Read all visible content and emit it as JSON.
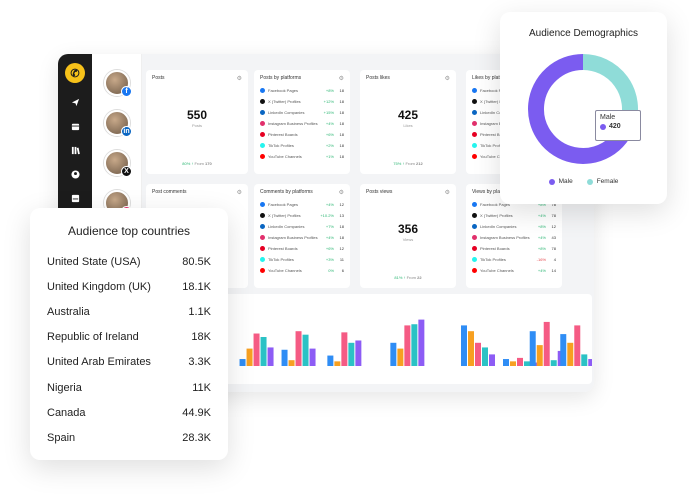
{
  "colors": {
    "facebook": "#1877f2",
    "x": "#111111",
    "linkedin": "#0a66c2",
    "instagram": "#e1306c",
    "pinterest": "#e60023",
    "tiktok": "#25f4ee",
    "youtube": "#ff0000",
    "male": "#7b5cf0",
    "female": "#8fdcd8",
    "bar_blue": "#2f8df5",
    "bar_orange": "#f7a021",
    "bar_pink": "#f55b84",
    "bar_teal": "#2bc2c5",
    "bar_purple": "#8d5cf5",
    "bar_dark": "#222222",
    "bar_yellow": "#ffcf4a"
  },
  "sidebar": {
    "icons": [
      "logo-icon",
      "send-icon",
      "calendar-icon",
      "library-icon",
      "user-icon",
      "inbox-icon"
    ]
  },
  "accounts": [
    {
      "network": "facebook",
      "badge": "f"
    },
    {
      "network": "linkedin",
      "badge": "in"
    },
    {
      "network": "x",
      "badge": "X"
    },
    {
      "network": "instagram",
      "badge": "◎"
    }
  ],
  "cards": {
    "posts": {
      "title": "Posts",
      "value": "550",
      "sub": "Posts",
      "change": "80% ↑",
      "from_label": "From",
      "from_value": "170"
    },
    "likes": {
      "title": "Posts likes",
      "value": "425",
      "sub": "Likes",
      "change": "75% ↑",
      "from_label": "From",
      "from_value": "212"
    },
    "comments": {
      "title": "Post comments"
    },
    "views": {
      "title": "Posts views",
      "value": "356",
      "sub": "Views",
      "change": "81% ↑",
      "from_label": "From",
      "from_value": "22"
    },
    "by_platforms": {
      "title": "Posts by platforms",
      "rows": [
        {
          "name": "Facebook Pages",
          "change": "+8%",
          "value": "18"
        },
        {
          "name": "X (Twitter) Profiles",
          "change": "+12%",
          "value": "18"
        },
        {
          "name": "LinkedIn Companies",
          "change": "+15%",
          "value": "18"
        },
        {
          "name": "Instagram Business Profiles",
          "change": "+4%",
          "value": "18"
        },
        {
          "name": "Pinterest Boards",
          "change": "+6%",
          "value": "18"
        },
        {
          "name": "TikTok Profiles",
          "change": "+2%",
          "value": "18"
        },
        {
          "name": "YouTube Channels",
          "change": "+1%",
          "value": "18"
        }
      ]
    },
    "comments_by_platforms": {
      "title": "Comments by platforms",
      "rows": [
        {
          "name": "Facebook Pages",
          "change": "+4%",
          "value": "12"
        },
        {
          "name": "X (Twitter) Profiles",
          "change": "+10.2%",
          "value": "13"
        },
        {
          "name": "LinkedIn Companies",
          "change": "+7%",
          "value": "18"
        },
        {
          "name": "Instagram Business Profiles",
          "change": "+4%",
          "value": "18"
        },
        {
          "name": "Pinterest Boards",
          "change": "+6%",
          "value": "12"
        },
        {
          "name": "TikTok Profiles",
          "change": "+3%",
          "value": "11"
        },
        {
          "name": "YouTube Channels",
          "change": "0%",
          "value": "6"
        }
      ]
    },
    "likes_by_platforms": {
      "title": "Likes by platforms",
      "rows": [
        {
          "name": "Facebook Pages",
          "change": "",
          "value": ""
        },
        {
          "name": "X (Twitter) Profiles",
          "change": "",
          "value": ""
        },
        {
          "name": "LinkedIn Companies",
          "change": "",
          "value": ""
        },
        {
          "name": "Instagram Business Profiles",
          "change": "",
          "value": ""
        },
        {
          "name": "Pinterest Boards",
          "change": "",
          "value": ""
        },
        {
          "name": "TikTok Profiles",
          "change": "",
          "value": ""
        },
        {
          "name": "YouTube Channels",
          "change": "",
          "value": ""
        }
      ]
    },
    "views_by_platforms": {
      "title": "Views by platforms",
      "rows": [
        {
          "name": "Facebook Pages",
          "change": "+8%",
          "value": "78"
        },
        {
          "name": "X (Twitter) Profiles",
          "change": "+4%",
          "value": "78"
        },
        {
          "name": "LinkedIn Companies",
          "change": "+8%",
          "value": "12"
        },
        {
          "name": "Instagram Business Profiles",
          "change": "+4%",
          "value": "43"
        },
        {
          "name": "Pinterest Boards",
          "change": "+8%",
          "value": "78"
        },
        {
          "name": "TikTok Profiles",
          "change": "-16%",
          "value": "4"
        },
        {
          "name": "YouTube Channels",
          "change": "+4%",
          "value": "14"
        }
      ]
    }
  },
  "chart_data": {
    "type": "bar",
    "groups": [
      {
        "values": [
          12,
          30,
          56,
          50,
          32
        ]
      },
      {
        "values": [
          28,
          10,
          60,
          54,
          30
        ]
      },
      {
        "values": [
          18,
          8,
          58,
          40,
          44
        ]
      },
      {
        "values": [
          40,
          30,
          70,
          72,
          80
        ]
      },
      {
        "values": [
          70,
          60,
          40,
          32,
          20
        ]
      },
      {
        "values": [
          12,
          8,
          14,
          8,
          6
        ]
      },
      {
        "values": [
          60,
          36,
          76,
          10,
          26
        ]
      },
      {
        "values": [
          55,
          40,
          70,
          20,
          12
        ]
      }
    ],
    "series_colors": [
      "bar_blue",
      "bar_orange",
      "bar_pink",
      "bar_teal",
      "bar_purple"
    ],
    "ylim": [
      0,
      100
    ]
  },
  "countries": {
    "title": "Audience top countries",
    "rows": [
      {
        "name": "United State (USA)",
        "value": "80.5K"
      },
      {
        "name": "United Kingdom (UK)",
        "value": "18.1K"
      },
      {
        "name": "Australia",
        "value": "1.1K"
      },
      {
        "name": "Republic of Ireland",
        "value": "18K"
      },
      {
        "name": "United Arab Emirates",
        "value": "3.3K"
      },
      {
        "name": "Nigeria",
        "value": "11K"
      },
      {
        "name": "Canada",
        "value": "44.9K"
      },
      {
        "name": "Spain",
        "value": "28.3K"
      }
    ]
  },
  "demographics": {
    "title": "Audience Demographics",
    "tooltip_label": "Male",
    "tooltip_value": "420",
    "segments": [
      {
        "name": "Male",
        "value": 420
      },
      {
        "name": "Female",
        "value": 180
      }
    ],
    "legend": {
      "male": "Male",
      "female": "Female"
    }
  }
}
